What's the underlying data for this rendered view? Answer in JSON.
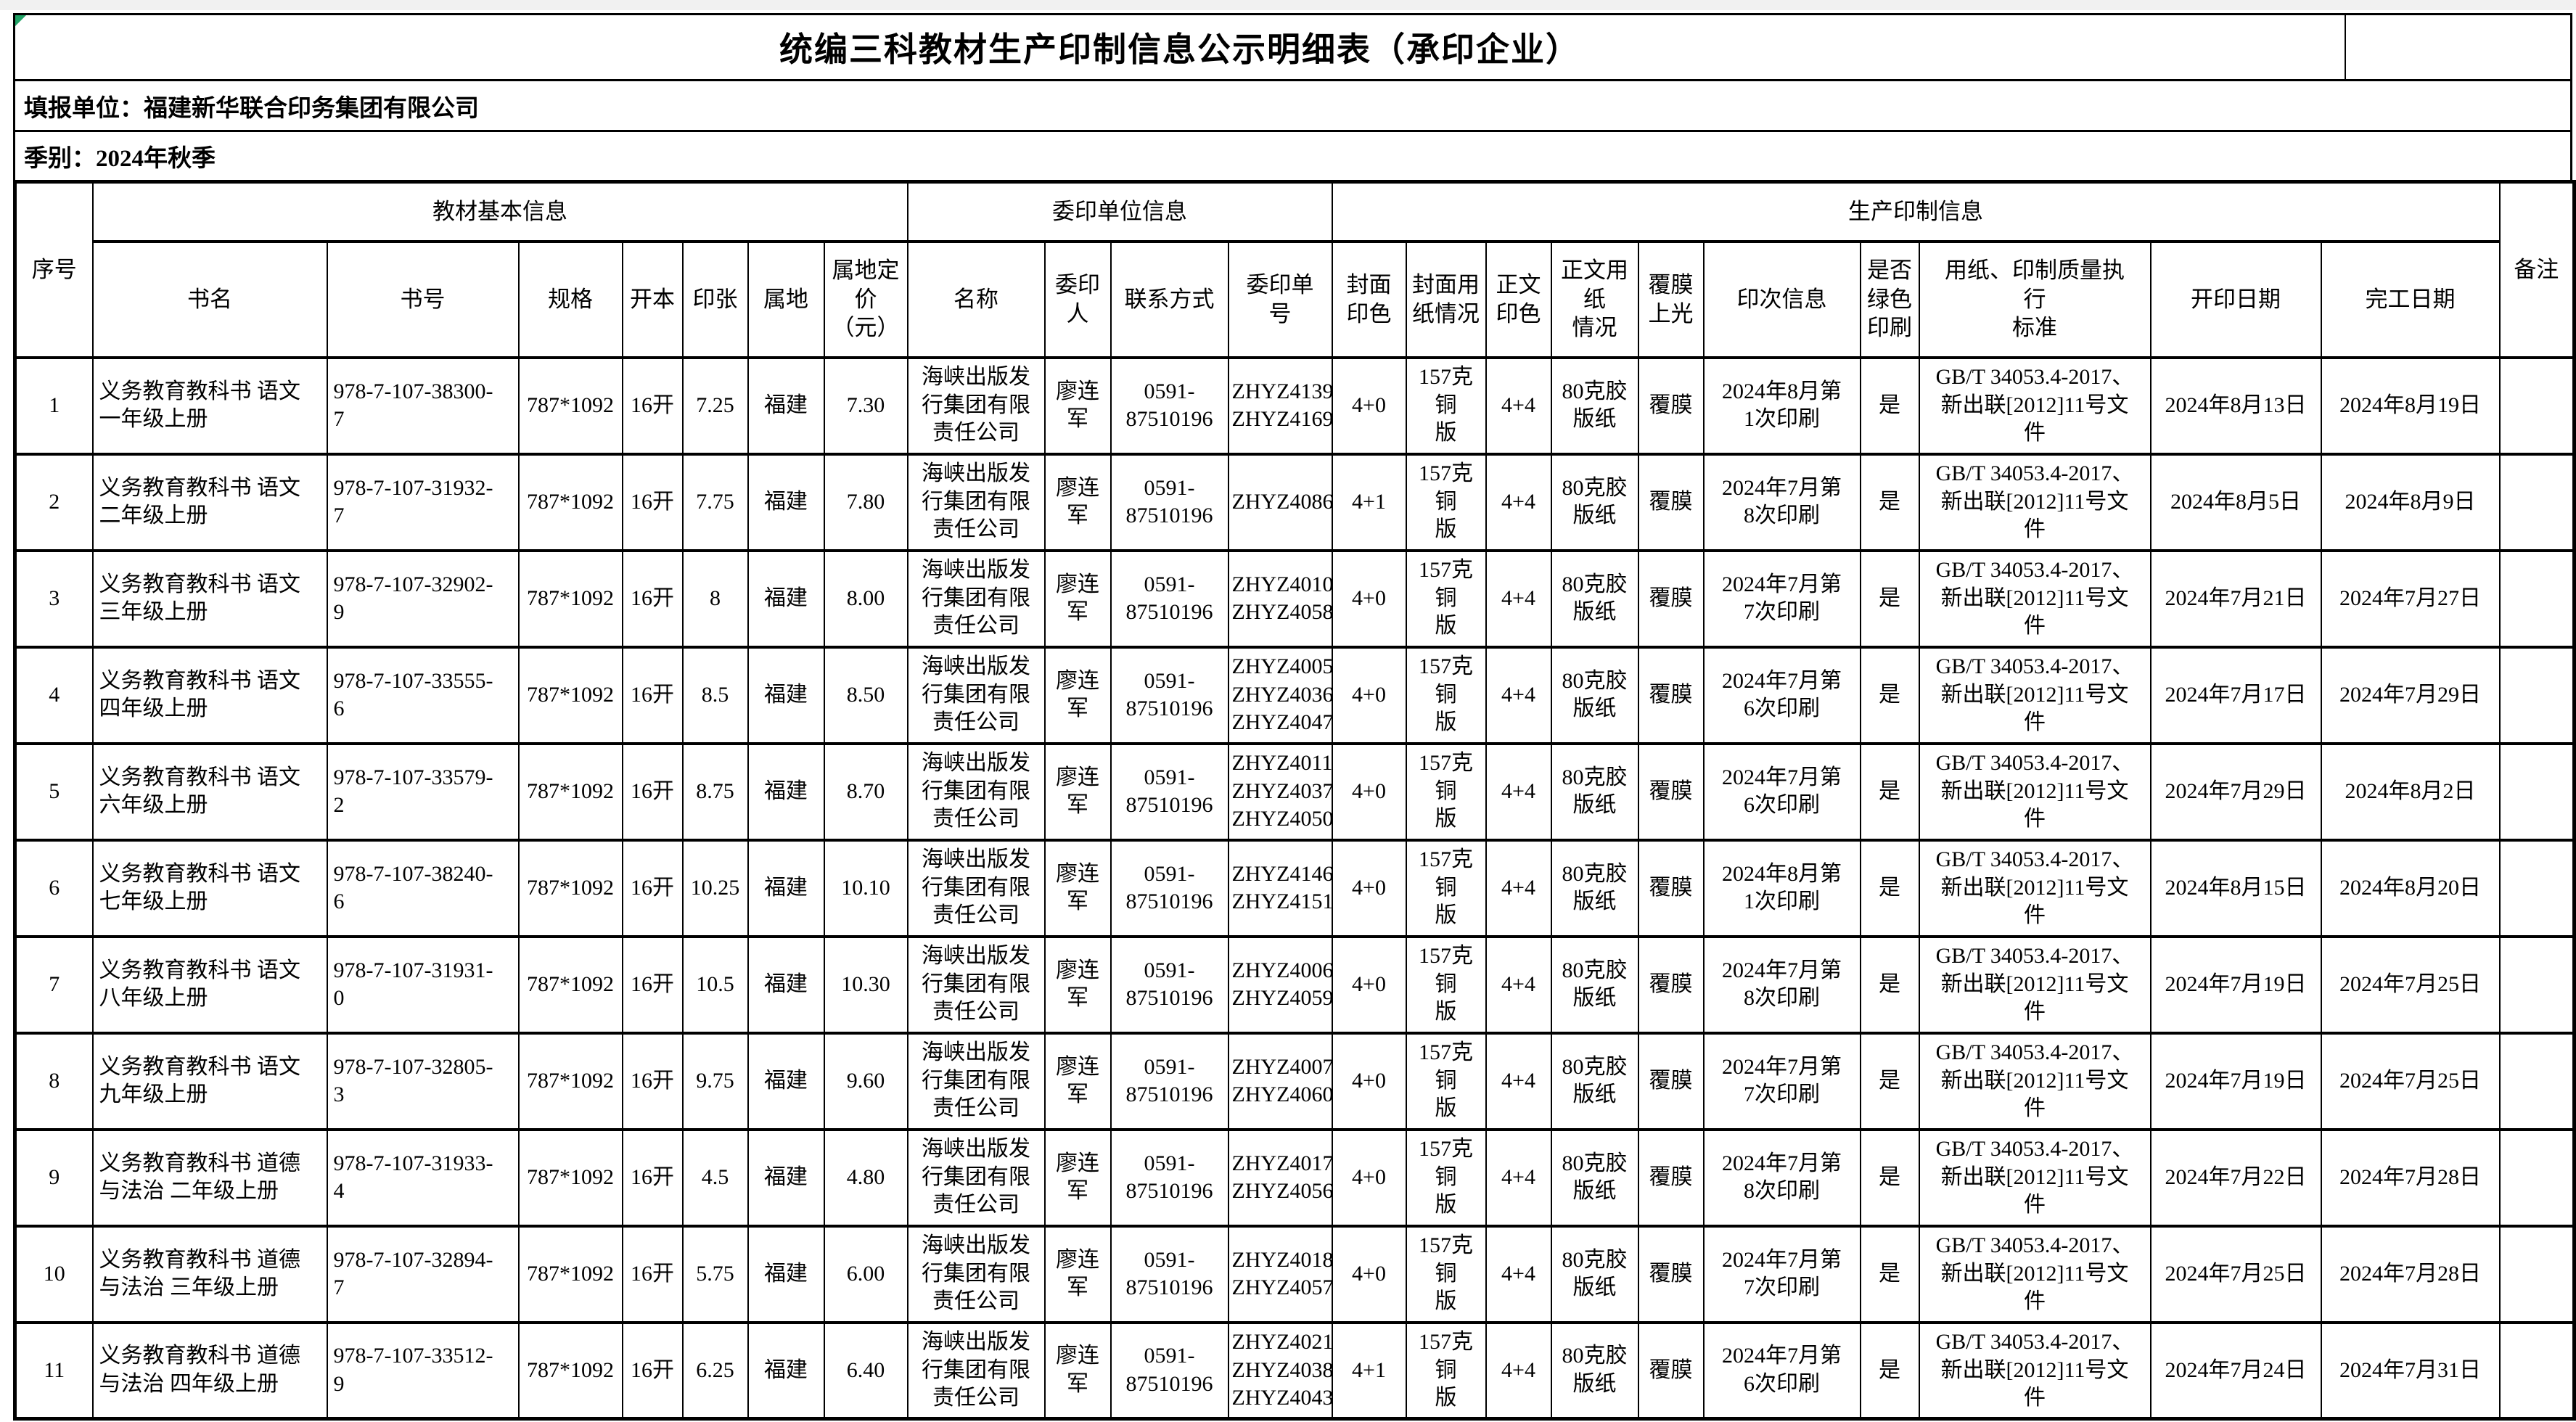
{
  "title_bar": {
    "title": "统编三科教材生产印制信息公示明细表（承印企业）"
  },
  "info": {
    "report_unit": "填报单位：福建新华联合印务集团有限公司",
    "season": "季别：2024年秋季"
  },
  "colors": {
    "corner_flag": "#21a366",
    "sheet_margin": "#f1f1f1",
    "grid_line": "#000000"
  },
  "table": {
    "groups": {
      "basic": "教材基本信息",
      "commission": "委印单位信息",
      "production": "生产印制信息"
    },
    "columns": {
      "seq": "序号",
      "book_name": "书名",
      "isbn": "书号",
      "spec": "规格",
      "format": "开本",
      "sheets": "印张",
      "region": "属地",
      "price": "属地定\n价\n（元）",
      "unit_name": "名称",
      "agent": "委印\n人",
      "contact": "联系方式",
      "order_no": "委印单\n号",
      "cover_colors": "封面\n印色",
      "cover_paper": "封面用\n纸情况",
      "body_colors": "正文\n印色",
      "body_paper": "正文用\n纸\n情况",
      "lamination": "覆膜\n上光",
      "print_run": "印次信息",
      "green": "是否\n绿色\n印刷",
      "standard": "用纸、印制质量执\n行\n标准",
      "start_date": "开印日期",
      "finish_date": "完工日期",
      "remark": "备注"
    },
    "rows": [
      {
        "seq": "1",
        "book_name": "义务教育教科书 语文\n一年级上册",
        "isbn": "978-7-107-38300-\n7",
        "spec": "787*1092",
        "format": "16开",
        "sheets": "7.25",
        "region": "福建",
        "price": "7.30",
        "unit_name": "海峡出版发\n行集团有限\n责任公司",
        "agent": "廖连军",
        "contact": "0591-\n87510196",
        "order_no": "ZHYZ4139\nZHYZ4169",
        "cover_colors": "4+0",
        "cover_paper": "157克铜\n版",
        "body_colors": "4+4",
        "body_paper": "80克胶\n版纸",
        "lamination": "覆膜",
        "print_run": "2024年8月第\n1次印刷",
        "green": "是",
        "standard": "GB/T 34053.4-2017、\n新出联[2012]11号文\n件",
        "start_date": "2024年8月13日",
        "finish_date": "2024年8月19日",
        "remark": ""
      },
      {
        "seq": "2",
        "book_name": "义务教育教科书 语文\n二年级上册",
        "isbn": "978-7-107-31932-\n7",
        "spec": "787*1092",
        "format": "16开",
        "sheets": "7.75",
        "region": "福建",
        "price": "7.80",
        "unit_name": "海峡出版发\n行集团有限\n责任公司",
        "agent": "廖连军",
        "contact": "0591-\n87510196",
        "order_no": "ZHYZ4086",
        "cover_colors": "4+1",
        "cover_paper": "157克铜\n版",
        "body_colors": "4+4",
        "body_paper": "80克胶\n版纸",
        "lamination": "覆膜",
        "print_run": "2024年7月第\n8次印刷",
        "green": "是",
        "standard": "GB/T 34053.4-2017、\n新出联[2012]11号文\n件",
        "start_date": "2024年8月5日",
        "finish_date": "2024年8月9日",
        "remark": ""
      },
      {
        "seq": "3",
        "book_name": "义务教育教科书 语文\n三年级上册",
        "isbn": "978-7-107-32902-\n9",
        "spec": "787*1092",
        "format": "16开",
        "sheets": "8",
        "region": "福建",
        "price": "8.00",
        "unit_name": "海峡出版发\n行集团有限\n责任公司",
        "agent": "廖连军",
        "contact": "0591-\n87510196",
        "order_no": "ZHYZ4010\nZHYZ4058",
        "cover_colors": "4+0",
        "cover_paper": "157克铜\n版",
        "body_colors": "4+4",
        "body_paper": "80克胶\n版纸",
        "lamination": "覆膜",
        "print_run": "2024年7月第\n7次印刷",
        "green": "是",
        "standard": "GB/T 34053.4-2017、\n新出联[2012]11号文\n件",
        "start_date": "2024年7月21日",
        "finish_date": "2024年7月27日",
        "remark": ""
      },
      {
        "seq": "4",
        "book_name": "义务教育教科书 语文\n四年级上册",
        "isbn": "978-7-107-33555-\n6",
        "spec": "787*1092",
        "format": "16开",
        "sheets": "8.5",
        "region": "福建",
        "price": "8.50",
        "unit_name": "海峡出版发\n行集团有限\n责任公司",
        "agent": "廖连军",
        "contact": "0591-\n87510196",
        "order_no": "ZHYZ4005\nZHYZ4036\nZHYZ4047",
        "cover_colors": "4+0",
        "cover_paper": "157克铜\n版",
        "body_colors": "4+4",
        "body_paper": "80克胶\n版纸",
        "lamination": "覆膜",
        "print_run": "2024年7月第\n6次印刷",
        "green": "是",
        "standard": "GB/T 34053.4-2017、\n新出联[2012]11号文\n件",
        "start_date": "2024年7月17日",
        "finish_date": "2024年7月29日",
        "remark": ""
      },
      {
        "seq": "5",
        "book_name": "义务教育教科书 语文\n六年级上册",
        "isbn": "978-7-107-33579-\n2",
        "spec": "787*1092",
        "format": "16开",
        "sheets": "8.75",
        "region": "福建",
        "price": "8.70",
        "unit_name": "海峡出版发\n行集团有限\n责任公司",
        "agent": "廖连军",
        "contact": "0591-\n87510196",
        "order_no": "ZHYZ4011\nZHYZ4037\nZHYZ4050",
        "cover_colors": "4+0",
        "cover_paper": "157克铜\n版",
        "body_colors": "4+4",
        "body_paper": "80克胶\n版纸",
        "lamination": "覆膜",
        "print_run": "2024年7月第\n6次印刷",
        "green": "是",
        "standard": "GB/T 34053.4-2017、\n新出联[2012]11号文\n件",
        "start_date": "2024年7月29日",
        "finish_date": "2024年8月2日",
        "remark": ""
      },
      {
        "seq": "6",
        "book_name": "义务教育教科书 语文\n七年级上册",
        "isbn": "978-7-107-38240-\n6",
        "spec": "787*1092",
        "format": "16开",
        "sheets": "10.25",
        "region": "福建",
        "price": "10.10",
        "unit_name": "海峡出版发\n行集团有限\n责任公司",
        "agent": "廖连军",
        "contact": "0591-\n87510196",
        "order_no": "ZHYZ4146\nZHYZ4151",
        "cover_colors": "4+0",
        "cover_paper": "157克铜\n版",
        "body_colors": "4+4",
        "body_paper": "80克胶\n版纸",
        "lamination": "覆膜",
        "print_run": "2024年8月第\n1次印刷",
        "green": "是",
        "standard": "GB/T 34053.4-2017、\n新出联[2012]11号文\n件",
        "start_date": "2024年8月15日",
        "finish_date": "2024年8月20日",
        "remark": ""
      },
      {
        "seq": "7",
        "book_name": "义务教育教科书 语文\n八年级上册",
        "isbn": "978-7-107-31931-\n0",
        "spec": "787*1092",
        "format": "16开",
        "sheets": "10.5",
        "region": "福建",
        "price": "10.30",
        "unit_name": "海峡出版发\n行集团有限\n责任公司",
        "agent": "廖连军",
        "contact": "0591-\n87510196",
        "order_no": "ZHYZ4006\nZHYZ4059",
        "cover_colors": "4+0",
        "cover_paper": "157克铜\n版",
        "body_colors": "4+4",
        "body_paper": "80克胶\n版纸",
        "lamination": "覆膜",
        "print_run": "2024年7月第\n8次印刷",
        "green": "是",
        "standard": "GB/T 34053.4-2017、\n新出联[2012]11号文\n件",
        "start_date": "2024年7月19日",
        "finish_date": "2024年7月25日",
        "remark": ""
      },
      {
        "seq": "8",
        "book_name": "义务教育教科书 语文\n九年级上册",
        "isbn": "978-7-107-32805-\n3",
        "spec": "787*1092",
        "format": "16开",
        "sheets": "9.75",
        "region": "福建",
        "price": "9.60",
        "unit_name": "海峡出版发\n行集团有限\n责任公司",
        "agent": "廖连军",
        "contact": "0591-\n87510196",
        "order_no": "ZHYZ4007\nZHYZ4060",
        "cover_colors": "4+0",
        "cover_paper": "157克铜\n版",
        "body_colors": "4+4",
        "body_paper": "80克胶\n版纸",
        "lamination": "覆膜",
        "print_run": "2024年7月第\n7次印刷",
        "green": "是",
        "standard": "GB/T 34053.4-2017、\n新出联[2012]11号文\n件",
        "start_date": "2024年7月19日",
        "finish_date": "2024年7月25日",
        "remark": ""
      },
      {
        "seq": "9",
        "book_name": "义务教育教科书 道德\n与法治 二年级上册",
        "isbn": "978-7-107-31933-\n4",
        "spec": "787*1092",
        "format": "16开",
        "sheets": "4.5",
        "region": "福建",
        "price": "4.80",
        "unit_name": "海峡出版发\n行集团有限\n责任公司",
        "agent": "廖连军",
        "contact": "0591-\n87510196",
        "order_no": "ZHYZ4017\nZHYZ4056",
        "cover_colors": "4+0",
        "cover_paper": "157克铜\n版",
        "body_colors": "4+4",
        "body_paper": "80克胶\n版纸",
        "lamination": "覆膜",
        "print_run": "2024年7月第\n8次印刷",
        "green": "是",
        "standard": "GB/T 34053.4-2017、\n新出联[2012]11号文\n件",
        "start_date": "2024年7月22日",
        "finish_date": "2024年7月28日",
        "remark": ""
      },
      {
        "seq": "10",
        "book_name": "义务教育教科书 道德\n与法治 三年级上册",
        "isbn": "978-7-107-32894-\n7",
        "spec": "787*1092",
        "format": "16开",
        "sheets": "5.75",
        "region": "福建",
        "price": "6.00",
        "unit_name": "海峡出版发\n行集团有限\n责任公司",
        "agent": "廖连军",
        "contact": "0591-\n87510196",
        "order_no": "ZHYZ4018\nZHYZ4057",
        "cover_colors": "4+0",
        "cover_paper": "157克铜\n版",
        "body_colors": "4+4",
        "body_paper": "80克胶\n版纸",
        "lamination": "覆膜",
        "print_run": "2024年7月第\n7次印刷",
        "green": "是",
        "standard": "GB/T 34053.4-2017、\n新出联[2012]11号文\n件",
        "start_date": "2024年7月25日",
        "finish_date": "2024年7月28日",
        "remark": ""
      },
      {
        "seq": "11",
        "book_name": "义务教育教科书 道德\n与法治 四年级上册",
        "isbn": "978-7-107-33512-\n9",
        "spec": "787*1092",
        "format": "16开",
        "sheets": "6.25",
        "region": "福建",
        "price": "6.40",
        "unit_name": "海峡出版发\n行集团有限\n责任公司",
        "agent": "廖连军",
        "contact": "0591-\n87510196",
        "order_no": "ZHYZ4021\nZHYZ4038\nZHYZ4043",
        "cover_colors": "4+1",
        "cover_paper": "157克铜\n版",
        "body_colors": "4+4",
        "body_paper": "80克胶\n版纸",
        "lamination": "覆膜",
        "print_run": "2024年7月第\n6次印刷",
        "green": "是",
        "standard": "GB/T 34053.4-2017、\n新出联[2012]11号文\n件",
        "start_date": "2024年7月24日",
        "finish_date": "2024年7月31日",
        "remark": ""
      }
    ]
  }
}
